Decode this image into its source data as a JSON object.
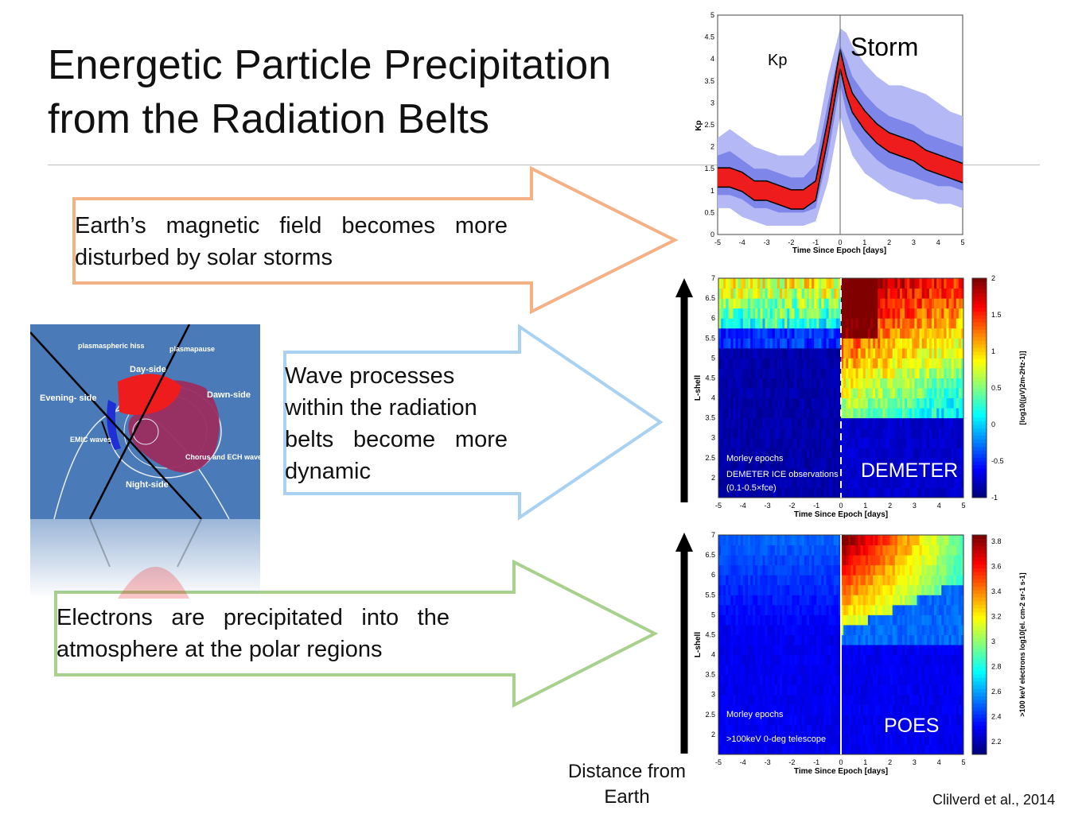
{
  "slide": {
    "title_line1": "Energetic Particle Precipitation",
    "title_line2": "from the Radiation Belts",
    "arrow1_line1": "Earth’s magnetic field becomes more",
    "arrow1_line2": "disturbed by solar storms",
    "arrow2_line1": "Wave processes",
    "arrow2_line2": "within the radiation",
    "arrow2_line3": "belts become more",
    "arrow2_line4": "dynamic",
    "arrow3_line1": "Electrons are precipitated into the",
    "arrow3_line2": "atmosphere at the polar regions",
    "distance_label_line1": "Distance from",
    "distance_label_line2": "Earth",
    "credit": "Clilverd et al., 2014",
    "colors": {
      "arrow1": "#f4b183",
      "arrow2": "#a9d1f2",
      "arrow3": "#a9d18e"
    }
  },
  "diagram": {
    "plasmaspheric_hiss": "plasmaspheric hiss",
    "plasmapause": "plasmapause",
    "day_side": "Day-side",
    "evening_side": "Evening- side",
    "dawn_side": "Dawn-side",
    "emic_waves": "EMIC waves",
    "chorus_ech": "Chorus and ECH waves",
    "night_side": "Night-side"
  },
  "chart_data": [
    {
      "type": "area",
      "title": "",
      "annotation_storm": "Storm",
      "annotation_kp": "Kp",
      "xlabel": "Time Since Epoch [days]",
      "ylabel": "Kp",
      "xlim": [
        -5,
        5
      ],
      "ylim": [
        0,
        5
      ],
      "xticks": [
        "-5",
        "-4",
        "-3",
        "-2",
        "-1",
        "0",
        "1",
        "2",
        "3",
        "4",
        "5"
      ],
      "yticks": [
        "0",
        "0.5",
        "1",
        "1.5",
        "2",
        "2.5",
        "3",
        "3.5",
        "4",
        "4.5",
        "5"
      ],
      "x": [
        -5,
        -4.5,
        -4,
        -3.5,
        -3,
        -2.5,
        -2,
        -1.5,
        -1,
        -0.5,
        0,
        0.25,
        0.5,
        1,
        1.5,
        2,
        2.5,
        3,
        3.5,
        4,
        4.5,
        5
      ],
      "series": [
        {
          "values": [
            1.3,
            1.3,
            1.2,
            1.0,
            1.0,
            0.9,
            0.8,
            0.8,
            1.0,
            2.4,
            4.0,
            3.4,
            3.0,
            2.6,
            2.3,
            2.1,
            2.0,
            1.9,
            1.7,
            1.6,
            1.5,
            1.4
          ]
        }
      ],
      "bands": {
        "outer_low": [
          0.6,
          0.6,
          0.4,
          0.3,
          0.2,
          0.2,
          0.2,
          0.2,
          0.3,
          1.2,
          2.7,
          2.2,
          1.8,
          1.4,
          1.2,
          1.0,
          0.9,
          0.8,
          0.8,
          0.7,
          0.7,
          0.6
        ],
        "outer_high": [
          2.2,
          2.4,
          2.2,
          2.0,
          1.9,
          1.8,
          1.8,
          1.8,
          2.1,
          3.6,
          4.7,
          4.6,
          4.3,
          3.9,
          3.6,
          3.4,
          3.4,
          3.3,
          3.2,
          3.0,
          2.8,
          2.7
        ],
        "mid_low": [
          0.9,
          0.9,
          0.8,
          0.6,
          0.6,
          0.5,
          0.5,
          0.5,
          0.6,
          1.8,
          3.4,
          2.8,
          2.4,
          2.0,
          1.7,
          1.5,
          1.4,
          1.3,
          1.2,
          1.1,
          1.1,
          1.0
        ],
        "mid_high": [
          1.8,
          1.9,
          1.7,
          1.5,
          1.5,
          1.4,
          1.3,
          1.3,
          1.6,
          3.0,
          4.3,
          4.0,
          3.6,
          3.2,
          2.9,
          2.7,
          2.6,
          2.5,
          2.3,
          2.2,
          2.1,
          2.0
        ]
      },
      "grid": false,
      "epoch_line": 0
    },
    {
      "type": "heatmap",
      "title": "",
      "xlabel": "Time Since Epoch [days]",
      "ylabel": "L-shell",
      "xlim": [
        -5,
        5
      ],
      "ylim": [
        1.5,
        7
      ],
      "xticks": [
        "-5",
        "-4",
        "-3",
        "-2",
        "-1",
        "0",
        "1",
        "2",
        "3",
        "4",
        "5"
      ],
      "yticks": [
        "2",
        "2.5",
        "3",
        "3.5",
        "4",
        "4.5",
        "5",
        "5.5",
        "6",
        "6.5",
        "7"
      ],
      "colorbar_label": "[log10((μV)2m-2Hz-1)]",
      "colorbar_ticks": [
        "2",
        "1.5",
        "1",
        "0.5",
        "0",
        "-0.5",
        "-1"
      ],
      "zlim": [
        -1,
        2
      ],
      "note_line1": "Morley epochs",
      "note_line2": "DEMETER ICE observations",
      "note_line3": "(0.1-0.5×fce)",
      "instrument": "DEMETER",
      "grid": false
    },
    {
      "type": "heatmap",
      "title": "",
      "xlabel": "Time Since Epoch [days]",
      "ylabel": "L-shell",
      "xlim": [
        -5,
        5
      ],
      "ylim": [
        1.5,
        7
      ],
      "xticks": [
        "-5",
        "-4",
        "-3",
        "-2",
        "-1",
        "0",
        "1",
        "2",
        "3",
        "4",
        "5"
      ],
      "yticks": [
        "2",
        "2.5",
        "3",
        "3.5",
        "4",
        "4.5",
        "5",
        "5.5",
        "6",
        "6.5",
        "7"
      ],
      "colorbar_label": ">100 keV electrons log10[el. cm-2 sr-1 s-1]",
      "colorbar_ticks": [
        "3.8",
        "3.6",
        "3.4",
        "3.2",
        "3",
        "2.8",
        "2.6",
        "2.4",
        "2.2"
      ],
      "zlim": [
        2.1,
        3.85
      ],
      "note_line1": "Morley epochs",
      "note_line2": ">100keV 0-deg telescope",
      "instrument": "POES",
      "grid": false
    }
  ]
}
